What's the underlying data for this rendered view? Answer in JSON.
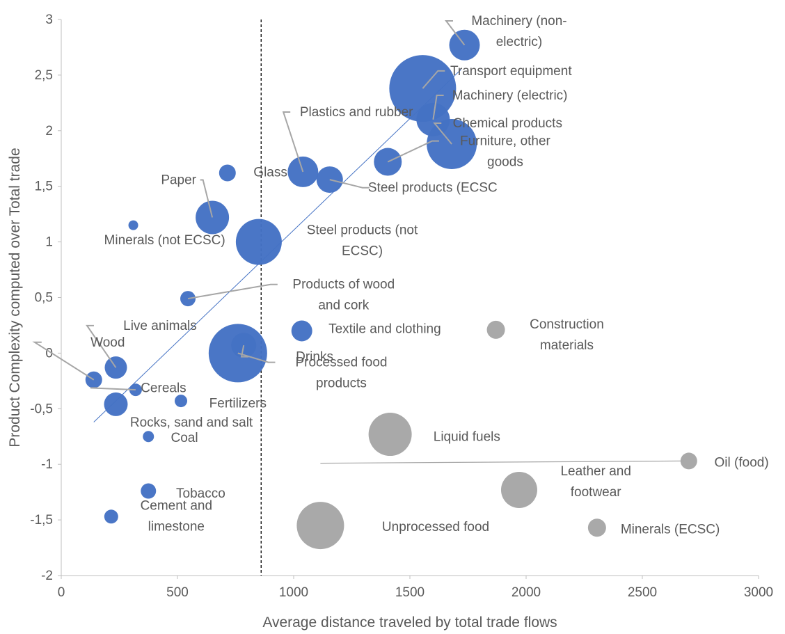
{
  "chart_data": {
    "type": "scatter",
    "xlabel": "Average distance traveled by total trade flows",
    "ylabel": "Product Complexity computed over Total trade",
    "xlim": [
      0,
      3000
    ],
    "ylim": [
      -2,
      3
    ],
    "x_ticks": [
      "0",
      "500",
      "1000",
      "1500",
      "2000",
      "2500",
      "3000"
    ],
    "y_ticks": [
      "3",
      "2,5",
      "2",
      "1,5",
      "1",
      "0,5",
      "0",
      "-0,5",
      "-1",
      "-1,5",
      "-2"
    ],
    "grid": false,
    "legend": "none",
    "bubble_size_encoding": true,
    "colors": {
      "complex": "#4472c4",
      "other": "#a6a6a6",
      "connector": "#a6a6a6",
      "axis": "#bfbfbf",
      "text": "#595959"
    },
    "vertical_reference_line": {
      "x": 860,
      "style": "dashed",
      "color": "#000000"
    },
    "trendline": {
      "from": [
        140,
        -0.62
      ],
      "to": [
        1720,
        2.55
      ],
      "color": "#4472c4"
    },
    "points": [
      {
        "label": "Machinery (non-\nelectric)",
        "x": 1735,
        "y": 2.77,
        "r": 22,
        "group": "complex",
        "label_x": 1970,
        "label_y": 2.95,
        "anchor": "middle",
        "leader": true
      },
      {
        "label": "Transport equipment",
        "x": 1555,
        "y": 2.38,
        "r": 48,
        "group": "complex",
        "label_x": 1935,
        "label_y": 2.5,
        "anchor": "middle",
        "leader": true
      },
      {
        "label": "Machinery (electric)",
        "x": 1600,
        "y": 2.1,
        "r": 24,
        "group": "complex",
        "label_x": 1930,
        "label_y": 2.28,
        "anchor": "middle",
        "leader": true
      },
      {
        "label": "Chemical products",
        "x": 1680,
        "y": 1.88,
        "r": 36,
        "group": "complex",
        "label_x": 1920,
        "label_y": 2.03,
        "anchor": "middle",
        "leader": true
      },
      {
        "label": "Furniture, other\ngoods",
        "x": 1405,
        "y": 1.72,
        "r": 20,
        "group": "complex",
        "label_x": 1910,
        "label_y": 1.87,
        "anchor": "middle",
        "leader": true
      },
      {
        "label": "Plastics and rubber",
        "x": 1040,
        "y": 1.63,
        "r": 22,
        "group": "complex",
        "label_x": 1270,
        "label_y": 2.13,
        "anchor": "middle",
        "leader": true
      },
      {
        "label": "Steel products (ECSC",
        "x": 1155,
        "y": 1.56,
        "r": 19,
        "group": "complex",
        "label_x": 1320,
        "label_y": 1.45,
        "anchor": "start",
        "leader": true
      },
      {
        "label": "Glass",
        "x": 715,
        "y": 1.62,
        "r": 12,
        "group": "complex",
        "label_x": 900,
        "label_y": 1.59,
        "anchor": "middle",
        "leader": false
      },
      {
        "label": "Paper",
        "x": 650,
        "y": 1.22,
        "r": 24,
        "group": "complex",
        "label_x": 505,
        "label_y": 1.52,
        "anchor": "middle",
        "leader": true
      },
      {
        "label": "Minerals (not ECSC)",
        "x": 310,
        "y": 1.15,
        "r": 7,
        "group": "complex",
        "label_x": 445,
        "label_y": 0.98,
        "anchor": "middle",
        "leader": false
      },
      {
        "label": "Steel products (not\nECSC)",
        "x": 850,
        "y": 1.0,
        "r": 33,
        "group": "complex",
        "label_x": 1295,
        "label_y": 1.07,
        "anchor": "middle",
        "leader": false
      },
      {
        "label": "Products of wood\nand cork",
        "x": 545,
        "y": 0.49,
        "r": 11,
        "group": "complex",
        "label_x": 1215,
        "label_y": 0.58,
        "anchor": "middle",
        "leader": true
      },
      {
        "label": "Textile and clothing",
        "x": 1035,
        "y": 0.2,
        "r": 15,
        "group": "complex",
        "label_x": 1150,
        "label_y": 0.18,
        "anchor": "start",
        "leader": false
      },
      {
        "label": "Live animals",
        "x": 235,
        "y": -0.13,
        "r": 16,
        "group": "complex",
        "label_x": 425,
        "label_y": 0.21,
        "anchor": "middle",
        "leader": true
      },
      {
        "label": "Wood",
        "x": 140,
        "y": -0.24,
        "r": 12,
        "group": "complex",
        "label_x": 200,
        "label_y": 0.06,
        "anchor": "middle",
        "leader": true
      },
      {
        "label": "Drinks",
        "x": 785,
        "y": 0.07,
        "r": 18,
        "group": "complex",
        "label_x": 1090,
        "label_y": -0.07,
        "anchor": "middle",
        "leader": true
      },
      {
        "label": "Processed food\nproducts",
        "x": 760,
        "y": 0.0,
        "r": 42,
        "group": "complex",
        "label_x": 1205,
        "label_y": -0.12,
        "anchor": "middle",
        "leader": true
      },
      {
        "label": "Cereals",
        "x": 320,
        "y": -0.33,
        "r": 9,
        "group": "complex",
        "label_x": 440,
        "label_y": -0.35,
        "anchor": "middle",
        "leader": true
      },
      {
        "label": "Fertilizers",
        "x": 515,
        "y": -0.43,
        "r": 9,
        "group": "complex",
        "label_x": 760,
        "label_y": -0.49,
        "anchor": "middle",
        "leader": false
      },
      {
        "label": "Rocks, sand and salt",
        "x": 235,
        "y": -0.46,
        "r": 17,
        "group": "complex",
        "label_x": 560,
        "label_y": -0.66,
        "anchor": "middle",
        "leader": false
      },
      {
        "label": "Coal",
        "x": 375,
        "y": -0.75,
        "r": 8,
        "group": "complex",
        "label_x": 530,
        "label_y": -0.8,
        "anchor": "middle",
        "leader": false
      },
      {
        "label": "Tobacco",
        "x": 375,
        "y": -1.24,
        "r": 11,
        "group": "complex",
        "label_x": 600,
        "label_y": -1.3,
        "anchor": "middle",
        "leader": false
      },
      {
        "label": "Cement and\nlimestone",
        "x": 215,
        "y": -1.47,
        "r": 10,
        "group": "complex",
        "label_x": 495,
        "label_y": -1.41,
        "anchor": "middle",
        "leader": false
      },
      {
        "label": "Construction\nmaterials",
        "x": 1870,
        "y": 0.21,
        "r": 13,
        "group": "other",
        "label_x": 2175,
        "label_y": 0.22,
        "anchor": "middle",
        "leader": false
      },
      {
        "label": "Liquid fuels",
        "x": 1415,
        "y": -0.73,
        "r": 31,
        "group": "other",
        "label_x": 1745,
        "label_y": -0.79,
        "anchor": "middle",
        "leader": false
      },
      {
        "label": "Oil (food)",
        "x": 2700,
        "y": -0.97,
        "r": 12,
        "group": "other",
        "label_x": 2810,
        "label_y": -1.02,
        "anchor": "start",
        "leader": false,
        "line_from": [
          1115,
          -0.99
        ],
        "line_to": [
          2680,
          -0.97
        ]
      },
      {
        "label": "Leather and\nfootwear",
        "x": 1970,
        "y": -1.23,
        "r": 26,
        "group": "other",
        "label_x": 2300,
        "label_y": -1.1,
        "anchor": "middle",
        "leader": false
      },
      {
        "label": "Unprocessed food",
        "x": 1115,
        "y": -1.55,
        "r": 34,
        "group": "other",
        "label_x": 1380,
        "label_y": -1.6,
        "anchor": "start",
        "leader": false
      },
      {
        "label": "Minerals (ECSC)",
        "x": 2305,
        "y": -1.57,
        "r": 13,
        "group": "other",
        "label_x": 2620,
        "label_y": -1.62,
        "anchor": "middle",
        "leader": false
      }
    ]
  }
}
